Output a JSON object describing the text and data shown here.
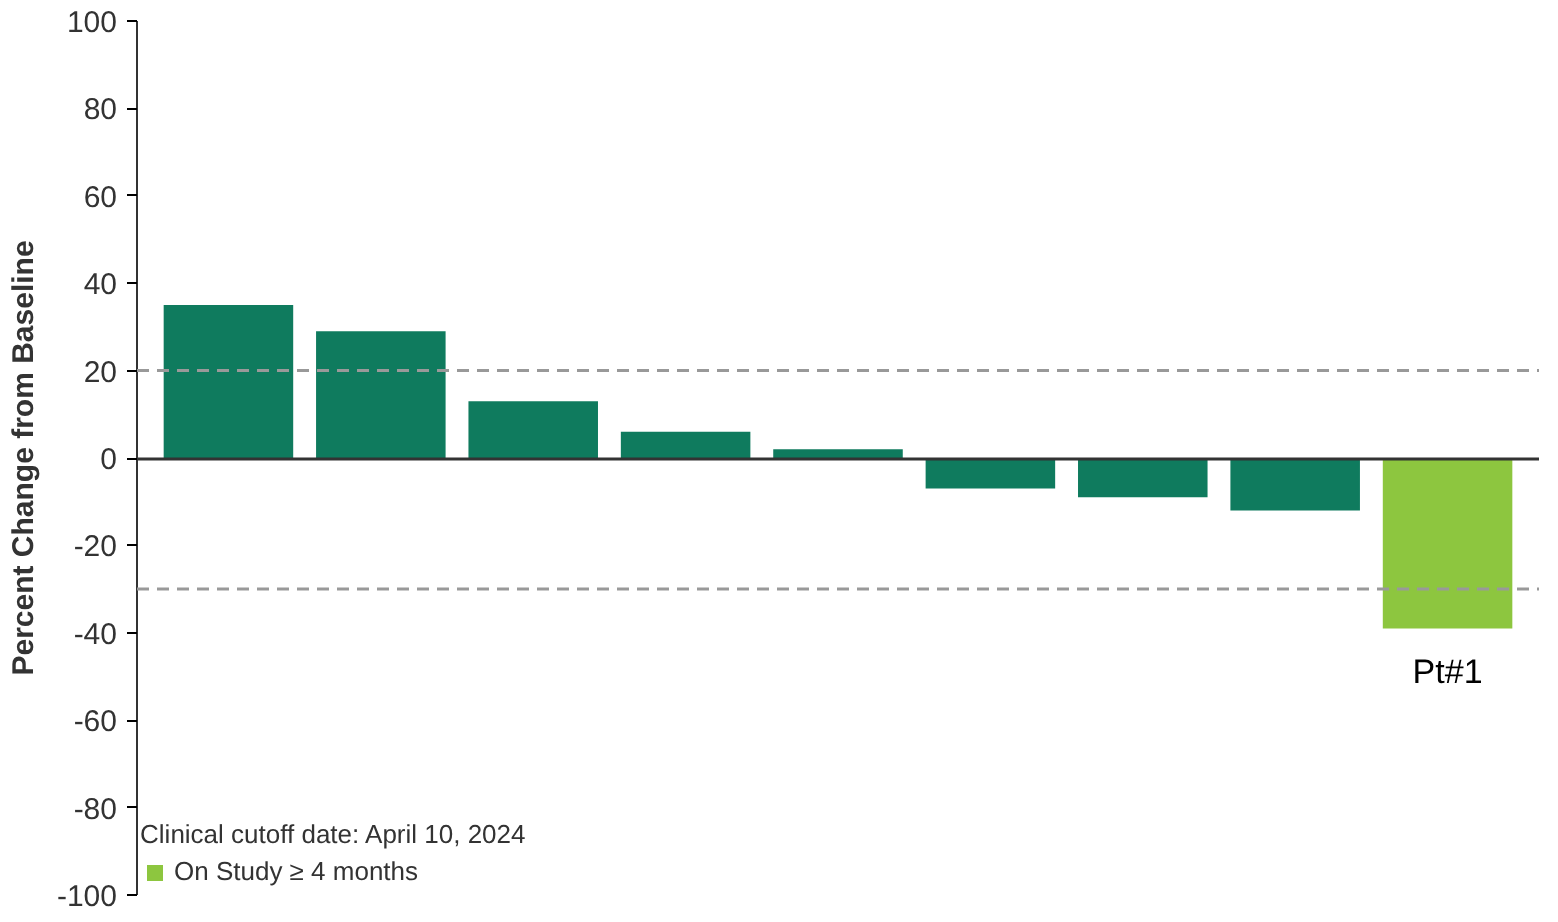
{
  "chart_data": {
    "type": "bar",
    "categories": [
      null,
      null,
      null,
      null,
      null,
      null,
      null,
      null,
      null
    ],
    "series": [
      {
        "color": "#0f7b5e",
        "values": [
          35,
          29,
          13,
          6,
          2,
          -7,
          -9,
          -12,
          null
        ]
      },
      {
        "name": "On Study ≥ 4 months",
        "color": "#8dc63f",
        "values": [
          null,
          null,
          null,
          null,
          null,
          null,
          null,
          null,
          -39
        ]
      }
    ],
    "ylabel": "Percent Change from Baseline",
    "ylim": [
      -100,
      100
    ],
    "yticks": [
      -100,
      -80,
      -60,
      -40,
      -20,
      0,
      20,
      40,
      60,
      80,
      100
    ],
    "ref_lines": [
      {
        "axis": "y",
        "value": 20,
        "color": "#999999",
        "line_style": "dashed"
      },
      {
        "axis": "y",
        "value": -30,
        "color": "#999999",
        "line_style": "dashed"
      }
    ],
    "annotations": [
      "Clinical cutoff date: April 10, 2024",
      "Pt#1"
    ],
    "grid": false,
    "legend": "bottom left"
  }
}
